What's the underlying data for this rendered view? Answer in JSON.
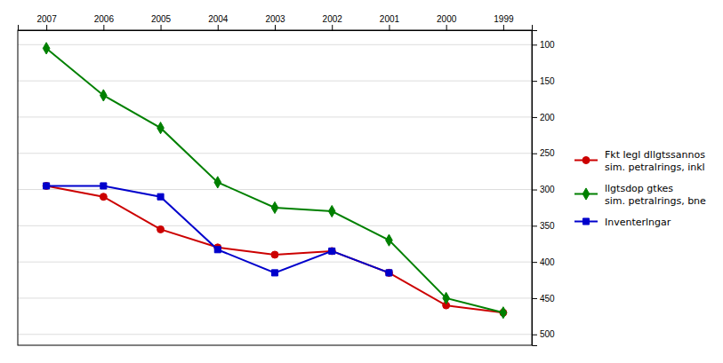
{
  "chart_data": {
    "type": "line",
    "x": [
      1999,
      2000,
      2001,
      2002,
      2003,
      2004,
      2005,
      2006,
      2007
    ],
    "series": [
      {
        "name": "Fkt legl dllgtssannos\nsim. petralrings, inkl",
        "color": "#cc0000",
        "marker": "circle",
        "values": [
          470,
          460,
          415,
          385,
          390,
          380,
          355,
          310,
          295
        ]
      },
      {
        "name": "llgtsdop gtkes\nsim. petralrings, bne",
        "color": "#008000",
        "marker": "diamond",
        "values": [
          470,
          450,
          370,
          330,
          325,
          290,
          215,
          170,
          105
        ]
      },
      {
        "name": "Inventerlngar",
        "color": "#0000cc",
        "marker": "square",
        "values": [
          null,
          null,
          415,
          385,
          415,
          383,
          310,
          295,
          295
        ]
      }
    ],
    "xlim": [
      2007.5,
      1998.5
    ],
    "xticks": [
      1999,
      2000,
      2001,
      2002,
      2003,
      2004,
      2005,
      2006,
      2007
    ],
    "ylim": [
      515,
      80
    ],
    "yticks": [
      100,
      150,
      200,
      250,
      300,
      350,
      400,
      450,
      500
    ],
    "grid": true,
    "legend": "right"
  }
}
